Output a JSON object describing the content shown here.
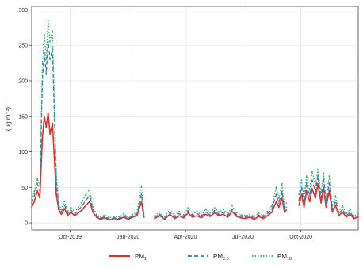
{
  "chart_data": {
    "type": "line",
    "title": "",
    "xlabel": "",
    "ylabel": "(μg m⁻³)",
    "x_range": [
      "2019-08-01",
      "2020-12-31"
    ],
    "ylim": [
      -10,
      305
    ],
    "x_ticks": [
      {
        "date": "2019-10-01",
        "label": "Oct-2019"
      },
      {
        "date": "2020-01-01",
        "label": "Jan-2020"
      },
      {
        "date": "2020-04-01",
        "label": "Apr-2020"
      },
      {
        "date": "2020-07-01",
        "label": "Jul-2020"
      },
      {
        "date": "2020-10-01",
        "label": "Oct-2020"
      }
    ],
    "y_ticks": [
      0,
      50,
      100,
      150,
      200,
      250,
      300
    ],
    "grid": true,
    "legend_position": "bottom",
    "series": [
      {
        "name": "PM1",
        "name_main": "PM",
        "name_sub": "1",
        "color": "#e0302f",
        "style": "solid",
        "points": [
          [
            "2019-08-01",
            22
          ],
          [
            "2019-08-05",
            30
          ],
          [
            "2019-08-10",
            45
          ],
          [
            "2019-08-14",
            35
          ],
          [
            "2019-08-18",
            120
          ],
          [
            "2019-08-21",
            150
          ],
          [
            "2019-08-24",
            135
          ],
          [
            "2019-08-27",
            155
          ],
          [
            "2019-08-30",
            125
          ],
          [
            "2019-09-03",
            140
          ],
          [
            "2019-09-06",
            90
          ],
          [
            "2019-09-09",
            40
          ],
          [
            "2019-09-13",
            18
          ],
          [
            "2019-09-17",
            12
          ],
          [
            "2019-09-22",
            20
          ],
          [
            "2019-09-27",
            10
          ],
          [
            "2019-10-02",
            15
          ],
          [
            "2019-10-08",
            10
          ],
          [
            "2019-10-14",
            14
          ],
          [
            "2019-10-20",
            18
          ],
          [
            "2019-10-26",
            25
          ],
          [
            "2019-11-01",
            30
          ],
          [
            "2019-11-06",
            15
          ],
          [
            "2019-11-12",
            8
          ],
          [
            "2019-11-18",
            5
          ],
          [
            "2019-11-25",
            7
          ],
          [
            "2019-12-02",
            4
          ],
          [
            "2019-12-10",
            6
          ],
          [
            "2019-12-18",
            5
          ],
          [
            "2019-12-25",
            8
          ],
          [
            "2020-01-01",
            5
          ],
          [
            "2020-01-08",
            8
          ],
          [
            "2020-01-15",
            10
          ],
          [
            "2020-01-22",
            30
          ],
          [
            "2020-01-26",
            8
          ],
          null,
          [
            "2020-02-12",
            6
          ],
          [
            "2020-02-20",
            10
          ],
          [
            "2020-02-28",
            5
          ],
          [
            "2020-03-07",
            12
          ],
          [
            "2020-03-15",
            6
          ],
          [
            "2020-03-22",
            10
          ],
          [
            "2020-03-29",
            7
          ],
          [
            "2020-04-05",
            14
          ],
          [
            "2020-04-12",
            8
          ],
          [
            "2020-04-19",
            10
          ],
          [
            "2020-04-26",
            7
          ],
          [
            "2020-05-03",
            12
          ],
          [
            "2020-05-10",
            9
          ],
          [
            "2020-05-17",
            14
          ],
          [
            "2020-05-24",
            10
          ],
          [
            "2020-05-31",
            12
          ],
          [
            "2020-06-07",
            8
          ],
          [
            "2020-06-14",
            16
          ],
          [
            "2020-06-21",
            9
          ],
          [
            "2020-06-28",
            7
          ],
          [
            "2020-07-05",
            6
          ],
          [
            "2020-07-12",
            8
          ],
          [
            "2020-07-19",
            5
          ],
          [
            "2020-07-26",
            9
          ],
          [
            "2020-08-02",
            6
          ],
          [
            "2020-08-09",
            10
          ],
          [
            "2020-08-16",
            15
          ],
          [
            "2020-08-23",
            30
          ],
          [
            "2020-08-27",
            22
          ],
          [
            "2020-09-01",
            35
          ],
          [
            "2020-09-05",
            15
          ],
          [
            "2020-09-08",
            18
          ],
          null,
          [
            "2020-09-28",
            25
          ],
          [
            "2020-10-02",
            40
          ],
          [
            "2020-10-06",
            22
          ],
          [
            "2020-10-10",
            45
          ],
          [
            "2020-10-15",
            30
          ],
          [
            "2020-10-19",
            48
          ],
          [
            "2020-10-24",
            35
          ],
          [
            "2020-10-28",
            55
          ],
          [
            "2020-11-02",
            28
          ],
          [
            "2020-11-06",
            50
          ],
          [
            "2020-11-10",
            22
          ],
          [
            "2020-11-15",
            45
          ],
          [
            "2020-11-20",
            15
          ],
          [
            "2020-11-25",
            25
          ],
          [
            "2020-11-30",
            10
          ],
          [
            "2020-12-06",
            15
          ],
          [
            "2020-12-12",
            8
          ],
          [
            "2020-12-18",
            12
          ],
          [
            "2020-12-24",
            6
          ],
          [
            "2020-12-31",
            8
          ]
        ]
      },
      {
        "name": "PM2.5",
        "name_main": "PM",
        "name_sub": "2.5",
        "color": "#2e7fae",
        "style": "dashed",
        "points": [
          [
            "2019-08-01",
            28
          ],
          [
            "2019-08-05",
            38
          ],
          [
            "2019-08-10",
            55
          ],
          [
            "2019-08-14",
            45
          ],
          [
            "2019-08-18",
            200
          ],
          [
            "2019-08-21",
            240
          ],
          [
            "2019-08-24",
            210
          ],
          [
            "2019-08-27",
            255
          ],
          [
            "2019-08-30",
            230
          ],
          [
            "2019-09-03",
            245
          ],
          [
            "2019-09-06",
            150
          ],
          [
            "2019-09-09",
            60
          ],
          [
            "2019-09-13",
            22
          ],
          [
            "2019-09-17",
            16
          ],
          [
            "2019-09-22",
            25
          ],
          [
            "2019-09-27",
            13
          ],
          [
            "2019-10-02",
            18
          ],
          [
            "2019-10-08",
            12
          ],
          [
            "2019-10-14",
            18
          ],
          [
            "2019-10-20",
            24
          ],
          [
            "2019-10-26",
            32
          ],
          [
            "2019-11-01",
            38
          ],
          [
            "2019-11-06",
            18
          ],
          [
            "2019-11-12",
            10
          ],
          [
            "2019-11-18",
            6
          ],
          [
            "2019-11-25",
            9
          ],
          [
            "2019-12-02",
            5
          ],
          [
            "2019-12-10",
            7
          ],
          [
            "2019-12-18",
            6
          ],
          [
            "2019-12-25",
            10
          ],
          [
            "2020-01-01",
            6
          ],
          [
            "2020-01-08",
            10
          ],
          [
            "2020-01-15",
            12
          ],
          [
            "2020-01-22",
            40
          ],
          [
            "2020-01-26",
            10
          ],
          null,
          [
            "2020-02-12",
            8
          ],
          [
            "2020-02-20",
            12
          ],
          [
            "2020-02-28",
            6
          ],
          [
            "2020-03-07",
            15
          ],
          [
            "2020-03-15",
            8
          ],
          [
            "2020-03-22",
            13
          ],
          [
            "2020-03-29",
            9
          ],
          [
            "2020-04-05",
            17
          ],
          [
            "2020-04-12",
            10
          ],
          [
            "2020-04-19",
            13
          ],
          [
            "2020-04-26",
            9
          ],
          [
            "2020-05-03",
            15
          ],
          [
            "2020-05-10",
            11
          ],
          [
            "2020-05-17",
            17
          ],
          [
            "2020-05-24",
            12
          ],
          [
            "2020-05-31",
            15
          ],
          [
            "2020-06-07",
            10
          ],
          [
            "2020-06-14",
            19
          ],
          [
            "2020-06-21",
            11
          ],
          [
            "2020-06-28",
            9
          ],
          [
            "2020-07-05",
            8
          ],
          [
            "2020-07-12",
            10
          ],
          [
            "2020-07-19",
            7
          ],
          [
            "2020-07-26",
            11
          ],
          [
            "2020-08-02",
            8
          ],
          [
            "2020-08-09",
            13
          ],
          [
            "2020-08-16",
            19
          ],
          [
            "2020-08-23",
            40
          ],
          [
            "2020-08-27",
            28
          ],
          [
            "2020-09-01",
            44
          ],
          [
            "2020-09-05",
            19
          ],
          [
            "2020-09-08",
            22
          ],
          null,
          [
            "2020-09-28",
            32
          ],
          [
            "2020-10-02",
            50
          ],
          [
            "2020-10-06",
            28
          ],
          [
            "2020-10-10",
            56
          ],
          [
            "2020-10-15",
            38
          ],
          [
            "2020-10-19",
            60
          ],
          [
            "2020-10-24",
            44
          ],
          [
            "2020-10-28",
            66
          ],
          [
            "2020-11-02",
            35
          ],
          [
            "2020-11-06",
            62
          ],
          [
            "2020-11-10",
            28
          ],
          [
            "2020-11-15",
            56
          ],
          [
            "2020-11-20",
            19
          ],
          [
            "2020-11-25",
            31
          ],
          [
            "2020-11-30",
            13
          ],
          [
            "2020-12-06",
            19
          ],
          [
            "2020-12-12",
            10
          ],
          [
            "2020-12-18",
            15
          ],
          [
            "2020-12-24",
            8
          ],
          [
            "2020-12-31",
            10
          ]
        ]
      },
      {
        "name": "PM10",
        "name_main": "PM",
        "name_sub": "10",
        "color": "#3aa873",
        "style": "dotted",
        "points": [
          [
            "2019-08-01",
            33
          ],
          [
            "2019-08-05",
            44
          ],
          [
            "2019-08-10",
            62
          ],
          [
            "2019-08-14",
            52
          ],
          [
            "2019-08-18",
            225
          ],
          [
            "2019-08-21",
            265
          ],
          [
            "2019-08-24",
            230
          ],
          [
            "2019-08-27",
            285
          ],
          [
            "2019-08-30",
            255
          ],
          [
            "2019-09-03",
            270
          ],
          [
            "2019-09-06",
            170
          ],
          [
            "2019-09-09",
            70
          ],
          [
            "2019-09-13",
            26
          ],
          [
            "2019-09-17",
            19
          ],
          [
            "2019-09-22",
            30
          ],
          [
            "2019-09-27",
            16
          ],
          [
            "2019-10-02",
            22
          ],
          [
            "2019-10-08",
            15
          ],
          [
            "2019-10-14",
            22
          ],
          [
            "2019-10-20",
            30
          ],
          [
            "2019-10-26",
            40
          ],
          [
            "2019-11-01",
            47
          ],
          [
            "2019-11-06",
            22
          ],
          [
            "2019-11-12",
            12
          ],
          [
            "2019-11-18",
            8
          ],
          [
            "2019-11-25",
            11
          ],
          [
            "2019-12-02",
            7
          ],
          [
            "2019-12-10",
            9
          ],
          [
            "2019-12-18",
            8
          ],
          [
            "2019-12-25",
            13
          ],
          [
            "2020-01-01",
            8
          ],
          [
            "2020-01-08",
            12
          ],
          [
            "2020-01-15",
            15
          ],
          [
            "2020-01-22",
            52
          ],
          [
            "2020-01-26",
            13
          ],
          null,
          [
            "2020-02-12",
            10
          ],
          [
            "2020-02-20",
            15
          ],
          [
            "2020-02-28",
            8
          ],
          [
            "2020-03-07",
            19
          ],
          [
            "2020-03-15",
            10
          ],
          [
            "2020-03-22",
            16
          ],
          [
            "2020-03-29",
            11
          ],
          [
            "2020-04-05",
            21
          ],
          [
            "2020-04-12",
            12
          ],
          [
            "2020-04-19",
            16
          ],
          [
            "2020-04-26",
            11
          ],
          [
            "2020-05-03",
            19
          ],
          [
            "2020-05-10",
            14
          ],
          [
            "2020-05-17",
            21
          ],
          [
            "2020-05-24",
            15
          ],
          [
            "2020-05-31",
            19
          ],
          [
            "2020-06-07",
            12
          ],
          [
            "2020-06-14",
            24
          ],
          [
            "2020-06-21",
            14
          ],
          [
            "2020-06-28",
            11
          ],
          [
            "2020-07-05",
            10
          ],
          [
            "2020-07-12",
            12
          ],
          [
            "2020-07-19",
            9
          ],
          [
            "2020-07-26",
            14
          ],
          [
            "2020-08-02",
            10
          ],
          [
            "2020-08-09",
            16
          ],
          [
            "2020-08-16",
            24
          ],
          [
            "2020-08-23",
            50
          ],
          [
            "2020-08-27",
            35
          ],
          [
            "2020-09-01",
            55
          ],
          [
            "2020-09-05",
            24
          ],
          [
            "2020-09-08",
            28
          ],
          null,
          [
            "2020-09-28",
            40
          ],
          [
            "2020-10-02",
            60
          ],
          [
            "2020-10-06",
            35
          ],
          [
            "2020-10-10",
            66
          ],
          [
            "2020-10-15",
            46
          ],
          [
            "2020-10-19",
            72
          ],
          [
            "2020-10-24",
            53
          ],
          [
            "2020-10-28",
            75
          ],
          [
            "2020-11-02",
            42
          ],
          [
            "2020-11-06",
            70
          ],
          [
            "2020-11-10",
            35
          ],
          [
            "2020-11-15",
            66
          ],
          [
            "2020-11-20",
            24
          ],
          [
            "2020-11-25",
            38
          ],
          [
            "2020-11-30",
            16
          ],
          [
            "2020-12-06",
            24
          ],
          [
            "2020-12-12",
            13
          ],
          [
            "2020-12-18",
            19
          ],
          [
            "2020-12-24",
            10
          ],
          [
            "2020-12-31",
            13
          ]
        ]
      }
    ]
  }
}
